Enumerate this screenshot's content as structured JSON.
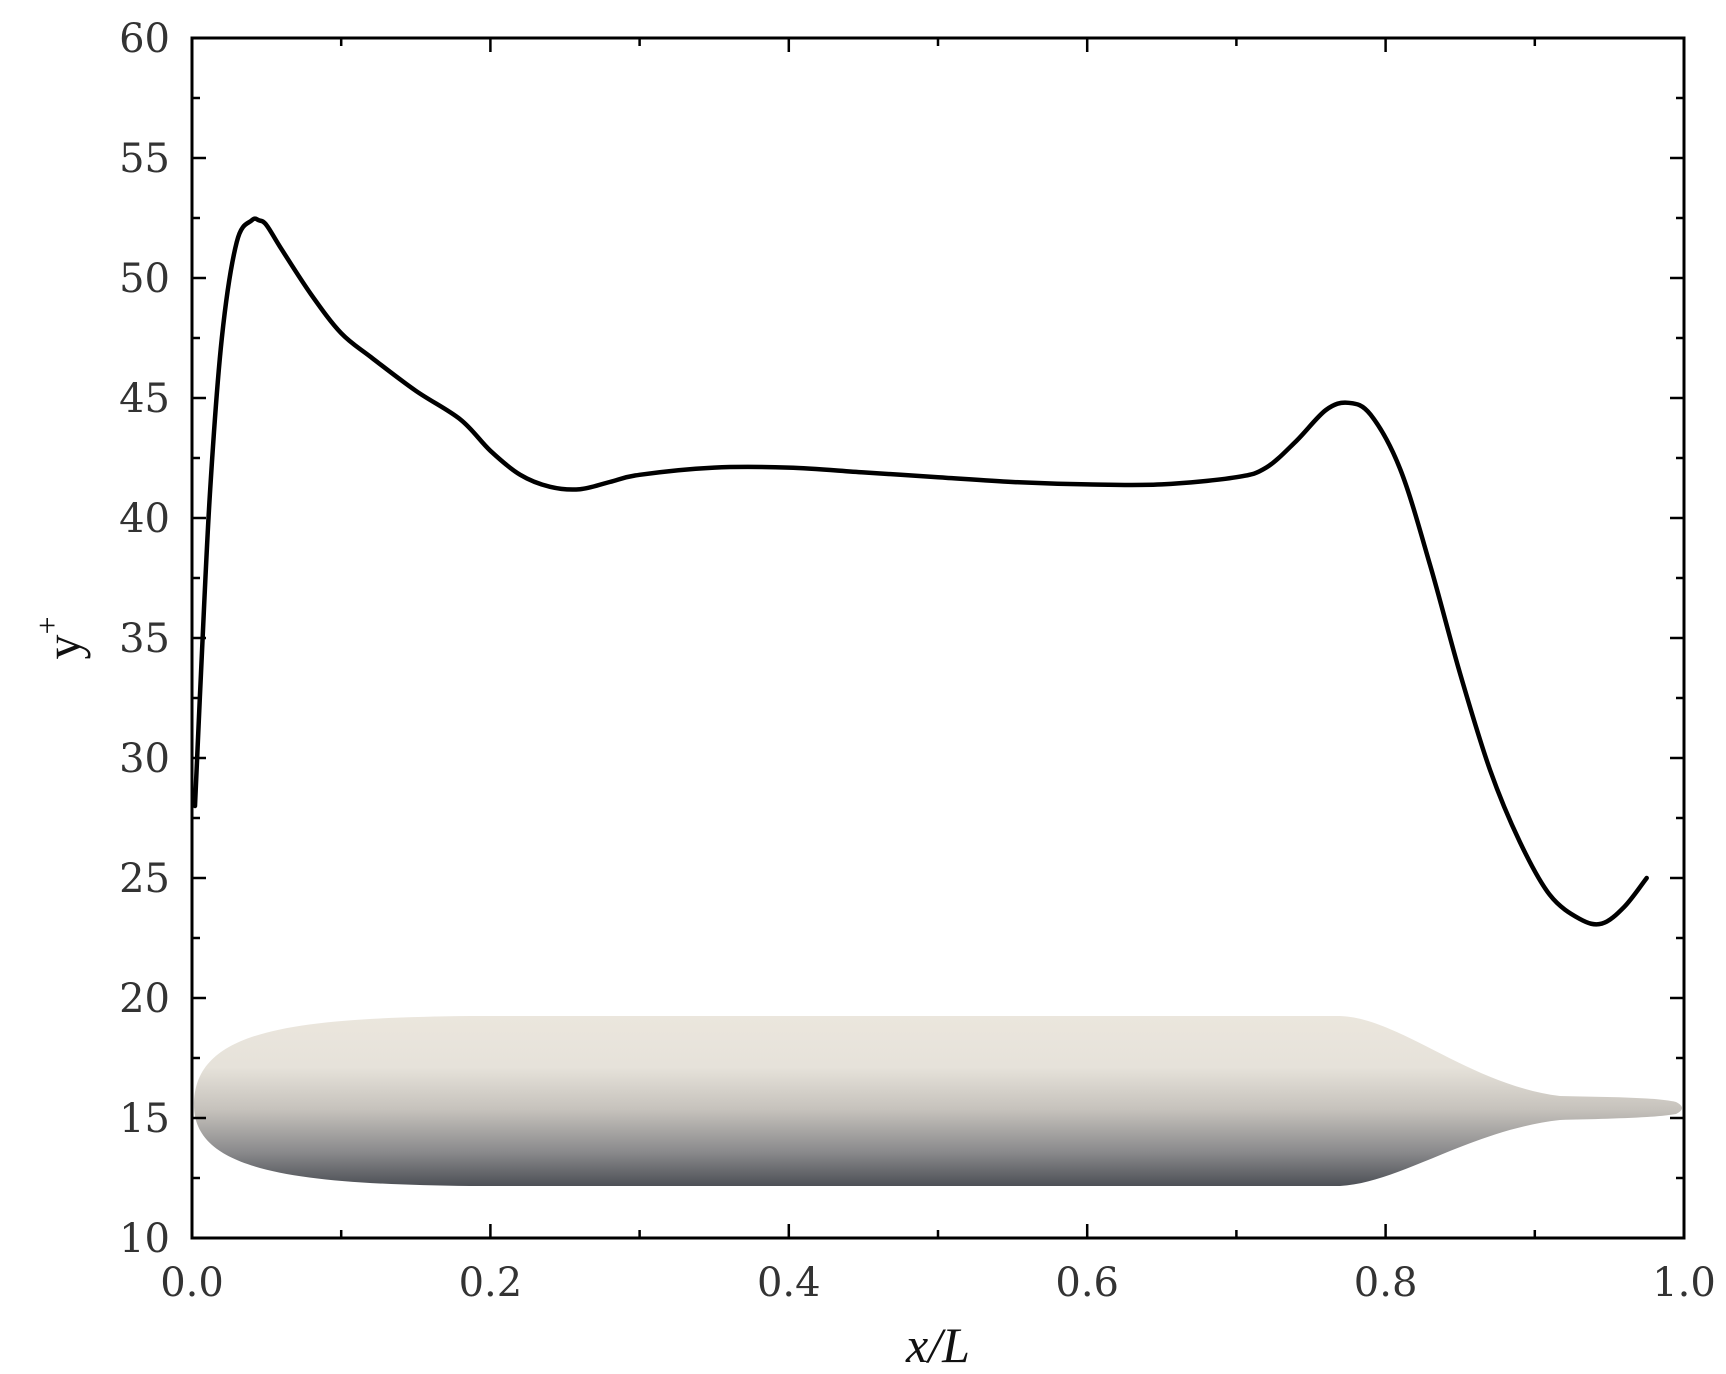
{
  "chart_data": {
    "type": "line",
    "title": "",
    "xlabel": "x/L",
    "ylabel": "y",
    "ylabel_sup": "+",
    "xlim": [
      0.0,
      1.0
    ],
    "ylim": [
      10,
      60
    ],
    "x_ticks": [
      0.0,
      0.2,
      0.4,
      0.6,
      0.8,
      1.0
    ],
    "x_tick_labels": [
      "0.0",
      "0.2",
      "0.4",
      "0.6",
      "0.8",
      "1.0"
    ],
    "y_ticks": [
      10,
      15,
      20,
      25,
      30,
      35,
      40,
      45,
      50,
      55,
      60
    ],
    "y_tick_labels": [
      "10",
      "15",
      "20",
      "25",
      "30",
      "35",
      "40",
      "45",
      "50",
      "55",
      "60"
    ],
    "grid": false,
    "legend": "none",
    "line_color": "#000000",
    "series": [
      {
        "x": [
          0.002,
          0.006,
          0.012,
          0.02,
          0.03,
          0.04,
          0.045,
          0.05,
          0.06,
          0.08,
          0.1,
          0.12,
          0.15,
          0.18,
          0.2,
          0.22,
          0.24,
          0.26,
          0.28,
          0.3,
          0.35,
          0.4,
          0.45,
          0.5,
          0.55,
          0.6,
          0.65,
          0.7,
          0.72,
          0.74,
          0.76,
          0.775,
          0.79,
          0.81,
          0.83,
          0.85,
          0.87,
          0.89,
          0.91,
          0.93,
          0.945,
          0.96,
          0.975
        ],
        "y": [
          28.0,
          33.5,
          41.0,
          47.5,
          51.5,
          52.4,
          52.4,
          52.2,
          51.2,
          49.3,
          47.7,
          46.7,
          45.3,
          44.1,
          42.8,
          41.8,
          41.3,
          41.2,
          41.5,
          41.8,
          42.1,
          42.1,
          41.9,
          41.7,
          41.5,
          41.4,
          41.4,
          41.7,
          42.1,
          43.2,
          44.5,
          44.8,
          44.3,
          42.0,
          38.0,
          33.5,
          29.5,
          26.5,
          24.3,
          23.3,
          23.1,
          23.8,
          25.0
        ]
      }
    ],
    "colors": {
      "hull_top": "#ebe6dd",
      "hull_mid": "#c6c2bc",
      "hull_bottom": "#4d5056"
    }
  }
}
